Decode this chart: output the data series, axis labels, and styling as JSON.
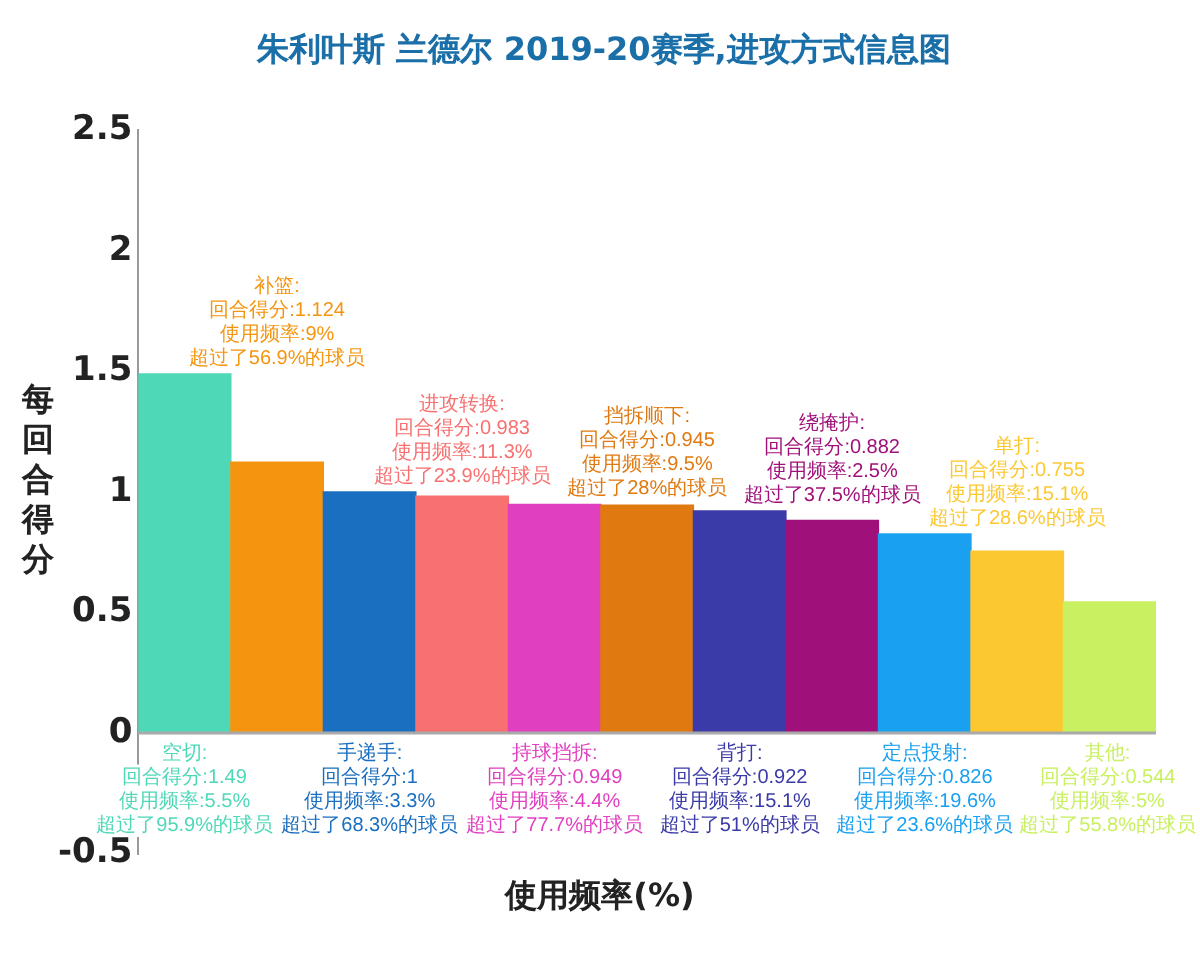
{
  "chart_data": {
    "type": "bar",
    "title": "朱利叶斯 兰德尔 2019-20赛季,进攻方式信息图",
    "xlabel": "使用频率(%)",
    "ylabel": "每回合得分",
    "categories": [
      null,
      null,
      null,
      null,
      null,
      null,
      null,
      null,
      null,
      null,
      null
    ],
    "values": [
      1.49,
      1.124,
      1.0,
      0.983,
      0.949,
      0.945,
      0.922,
      0.882,
      0.826,
      0.755,
      0.544
    ],
    "colors": [
      "#4fd8b8",
      "#f5950f",
      "#1a6fc0",
      "#f87070",
      "#e040c0",
      "#e07a10",
      "#3a3aa8",
      "#a0107a",
      "#1aa0f0",
      "#fcc832",
      "#c8f060"
    ],
    "ylim": [
      -0.5,
      2.5
    ],
    "yticks": [
      -0.5,
      0,
      0.5,
      1,
      1.5,
      2,
      2.5
    ],
    "grid": false,
    "ref_lines": [
      {
        "axis": "y",
        "value": 0,
        "color": "#aaaaaa"
      }
    ],
    "legend": false,
    "tick_labels": "y",
    "annotations": [
      "空切:\n回合得分:1.49\n使用频率:5.5%\n超过了95.9%的球员",
      "补篮:\n回合得分:1.124\n使用频率:9%\n超过了56.9%的球员",
      "手递手:\n回合得分:1\n使用频率:3.3%\n超过了68.3%的球员",
      "进攻转换:\n回合得分:0.983\n使用频率:11.3%\n超过了23.9%的球员",
      "持球挡拆:\n回合得分:0.949\n使用频率:4.4%\n超过了77.7%的球员",
      "挡拆顺下:\n回合得分:0.945\n使用频率:9.5%\n超过了28%的球员",
      "背打:\n回合得分:0.922\n使用频率:15.1%\n超过了51%的球员",
      "绕掩护:\n回合得分:0.882\n使用频率:2.5%\n超过了37.5%的球员",
      "定点投射:\n回合得分:0.826\n使用频率:19.6%\n超过了23.6%的球员",
      "单打:\n回合得分:0.755\n使用频率:15.1%\n超过了28.6%的球员",
      "其他:\n回合得分:0.544\n使用频率:5%\n超过了55.8%的球员"
    ]
  }
}
